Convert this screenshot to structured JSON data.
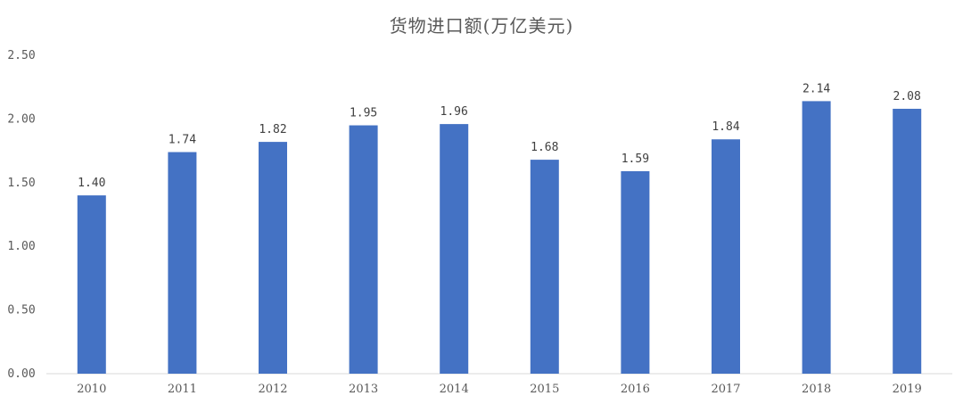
{
  "chart_data": {
    "type": "bar",
    "title": "货物进口额(万亿美元)",
    "xlabel": "",
    "ylabel": "",
    "categories": [
      "2010",
      "2011",
      "2012",
      "2013",
      "2014",
      "2015",
      "2016",
      "2017",
      "2018",
      "2019"
    ],
    "values": [
      1.4,
      1.74,
      1.82,
      1.95,
      1.96,
      1.68,
      1.59,
      1.84,
      2.14,
      2.08
    ],
    "value_labels": [
      "1.40",
      "1.74",
      "1.82",
      "1.95",
      "1.96",
      "1.68",
      "1.59",
      "1.84",
      "2.14",
      "2.08"
    ],
    "ylim": [
      0,
      2.5
    ],
    "yticks": [
      "0.00",
      "0.50",
      "1.00",
      "1.50",
      "2.00",
      "2.50"
    ],
    "grid": false,
    "legend": "none",
    "bar_color": "#4472C4"
  }
}
